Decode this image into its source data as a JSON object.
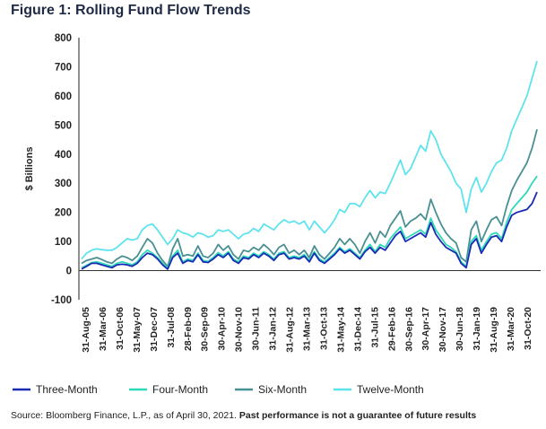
{
  "title": "Figure 1: Rolling Fund Flow Trends",
  "source_text": "Source: Bloomberg Finance, L.P., as of April 30, 2021. ",
  "source_bold": "Past performance is not a guarantee of future results",
  "chart_data": {
    "type": "line",
    "ylabel": "$ Billions",
    "ylim": [
      -100,
      800
    ],
    "yticks": [
      -100,
      0,
      100,
      200,
      300,
      400,
      500,
      600,
      700,
      800
    ],
    "grid": false,
    "legend_position": "bottom",
    "x_tick_labels": [
      "31-Aug-05",
      "31-Mar-06",
      "31-Oct-06",
      "31-May-07",
      "31-Dec-07",
      "31-Jul-08",
      "28-Feb-09",
      "30-Sep-09",
      "30-Apr-10",
      "30-Nov-10",
      "30-Jun-11",
      "31-Jan-12",
      "31-Aug-12",
      "31-Mar-13",
      "31-Oct-13",
      "31-May-14",
      "31-Dec-14",
      "31-Jul-15",
      "29-Feb-16",
      "30-Sep-16",
      "30-Apr-17",
      "30-Nov-17",
      "30-Jun-18",
      "31-Jan-19",
      "31-Aug-19",
      "31-Mar-20",
      "31-Oct-20"
    ],
    "series": [
      {
        "name": "Three-Month",
        "color": "#1a2bb5",
        "values": [
          5,
          15,
          25,
          25,
          20,
          15,
          10,
          20,
          22,
          20,
          15,
          25,
          45,
          60,
          55,
          40,
          20,
          5,
          45,
          60,
          25,
          35,
          30,
          55,
          30,
          28,
          40,
          55,
          45,
          60,
          35,
          25,
          45,
          40,
          55,
          45,
          60,
          50,
          35,
          55,
          60,
          40,
          45,
          40,
          50,
          30,
          60,
          35,
          25,
          40,
          55,
          75,
          60,
          70,
          55,
          40,
          65,
          80,
          60,
          80,
          70,
          95,
          120,
          135,
          100,
          110,
          120,
          130,
          115,
          165,
          125,
          100,
          80,
          70,
          60,
          25,
          10,
          90,
          110,
          60,
          90,
          115,
          120,
          100,
          150,
          190,
          200,
          205,
          210,
          230,
          270
        ]
      },
      {
        "name": "Four-Month",
        "color": "#2ed9b8",
        "values": [
          10,
          18,
          28,
          30,
          25,
          20,
          15,
          25,
          30,
          25,
          20,
          30,
          55,
          70,
          60,
          45,
          25,
          10,
          50,
          70,
          30,
          40,
          35,
          60,
          35,
          32,
          45,
          62,
          50,
          65,
          40,
          30,
          50,
          45,
          60,
          50,
          65,
          55,
          40,
          60,
          65,
          45,
          50,
          45,
          55,
          35,
          65,
          40,
          30,
          45,
          60,
          80,
          65,
          75,
          60,
          45,
          70,
          90,
          65,
          90,
          80,
          110,
          130,
          150,
          110,
          120,
          130,
          140,
          125,
          180,
          140,
          115,
          90,
          80,
          65,
          30,
          15,
          100,
          120,
          70,
          100,
          125,
          130,
          110,
          165,
          210,
          230,
          250,
          270,
          300,
          325
        ]
      },
      {
        "name": "Six-Month",
        "color": "#4a8f92",
        "values": [
          25,
          35,
          40,
          45,
          38,
          30,
          25,
          40,
          50,
          45,
          35,
          50,
          80,
          110,
          95,
          60,
          35,
          15,
          75,
          110,
          50,
          55,
          50,
          85,
          50,
          45,
          60,
          90,
          70,
          85,
          55,
          40,
          70,
          65,
          80,
          70,
          90,
          75,
          55,
          80,
          90,
          60,
          70,
          55,
          70,
          45,
          85,
          55,
          40,
          60,
          80,
          110,
          90,
          110,
          90,
          60,
          100,
          130,
          95,
          135,
          115,
          155,
          180,
          205,
          150,
          170,
          180,
          195,
          175,
          245,
          200,
          160,
          130,
          110,
          95,
          45,
          30,
          140,
          170,
          100,
          140,
          175,
          185,
          155,
          220,
          275,
          310,
          340,
          370,
          420,
          485
        ]
      },
      {
        "name": "Twelve-Month",
        "color": "#5ee3ee",
        "values": [
          40,
          60,
          70,
          75,
          72,
          70,
          70,
          80,
          95,
          110,
          105,
          110,
          140,
          155,
          160,
          140,
          115,
          90,
          110,
          140,
          130,
          125,
          115,
          130,
          125,
          115,
          120,
          140,
          135,
          140,
          125,
          110,
          125,
          130,
          145,
          135,
          160,
          150,
          140,
          160,
          175,
          165,
          170,
          160,
          170,
          140,
          170,
          150,
          130,
          150,
          175,
          210,
          200,
          230,
          230,
          220,
          250,
          275,
          250,
          270,
          265,
          300,
          340,
          380,
          330,
          350,
          390,
          430,
          410,
          480,
          450,
          400,
          370,
          340,
          300,
          280,
          200,
          280,
          320,
          270,
          300,
          340,
          370,
          380,
          420,
          480,
          520,
          560,
          600,
          660,
          720
        ]
      }
    ]
  }
}
